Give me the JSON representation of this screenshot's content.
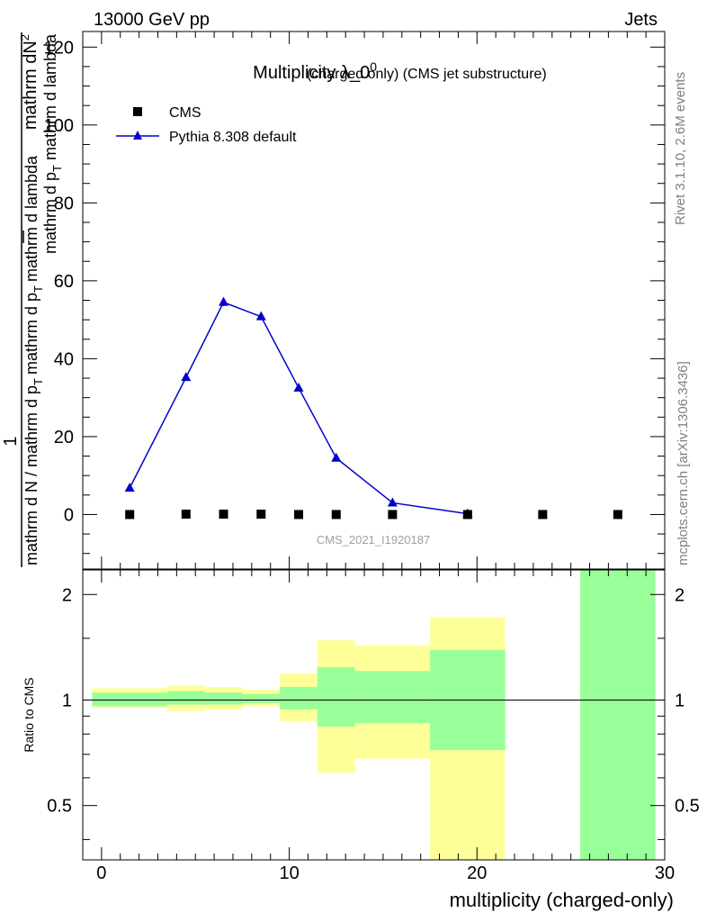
{
  "header": {
    "energy": "13000 GeV pp",
    "category": "Jets"
  },
  "side_text": {
    "rivet": "Rivet 3.1.10,  2.6M events",
    "mcplots": "mcplots.cern.ch [arXiv:1306.3436]"
  },
  "analysis_id": "CMS_2021_I1920187",
  "main_title": {
    "prefix": "Multiplicity λ_0",
    "superscript": "0",
    "suffix": "(charged only) (CMS jet substructure)"
  },
  "y_label": {
    "line1": "mathrm dN",
    "sup": "2",
    "line2a": "mathrm d p",
    "line2b": "T",
    "line2c": " mathrm d lambda",
    "one": "1",
    "den_a": "mathrm d N / mathrm d p",
    "den_b": "T",
    "den_c": "mathrm d p",
    "den_d": "T",
    "den_e": "mathrm d lambda"
  },
  "ratio_label": "Ratio to CMS",
  "x_label": "multiplicity (charged-only)",
  "colors": {
    "mc": "#0000cc",
    "data": "#000000",
    "band_inner": "#99ff99",
    "band_outer": "#ffff99"
  },
  "chart_data": [
    {
      "type": "scatter",
      "panel": "main",
      "title": "Multiplicity λ_0^0 (charged only) (CMS jet substructure)",
      "xlabel": "multiplicity (charged-only)",
      "xlim": [
        -1,
        30
      ],
      "ylim": [
        -14,
        124
      ],
      "yticks": [
        0,
        20,
        40,
        60,
        80,
        100,
        120
      ],
      "legend_position": "top-left",
      "series": [
        {
          "name": "CMS",
          "marker": "square",
          "x": [
            1.5,
            4.5,
            6.5,
            8.5,
            10.5,
            12.5,
            15.5,
            19.5,
            23.5,
            27.5
          ],
          "y": [
            0,
            0.1,
            0.1,
            0.1,
            0,
            0,
            0,
            0,
            0,
            0
          ]
        },
        {
          "name": "Pythia 8.308 default",
          "marker": "triangle",
          "line": true,
          "x": [
            1.5,
            4.5,
            6.5,
            8.5,
            10.5,
            12.5,
            15.5,
            19.5
          ],
          "y": [
            6.8,
            35.2,
            54.5,
            50.8,
            32.5,
            14.5,
            3.0,
            0.2
          ],
          "yerr": [
            0.5,
            0.8,
            1.0,
            0.9,
            0.7,
            0.5,
            0.2,
            0.05
          ]
        }
      ]
    },
    {
      "type": "area",
      "panel": "ratio",
      "ylabel": "Ratio to CMS",
      "xlim": [
        -1,
        30
      ],
      "ylim": [
        0.35,
        2.35
      ],
      "yticks": [
        0.5,
        1,
        2
      ],
      "reference_line": 1,
      "bins": [
        {
          "x_low": -0.5,
          "x_high": 3.5,
          "inner_low": 0.96,
          "inner_high": 1.05,
          "outer_low": 0.95,
          "outer_high": 1.08
        },
        {
          "x_low": 3.5,
          "x_high": 5.5,
          "inner_low": 0.97,
          "inner_high": 1.06,
          "outer_low": 0.93,
          "outer_high": 1.1
        },
        {
          "x_low": 5.5,
          "x_high": 7.5,
          "inner_low": 0.97,
          "inner_high": 1.05,
          "outer_low": 0.94,
          "outer_high": 1.09
        },
        {
          "x_low": 7.5,
          "x_high": 9.5,
          "inner_low": 0.98,
          "inner_high": 1.04,
          "outer_low": 0.96,
          "outer_high": 1.07
        },
        {
          "x_low": 9.5,
          "x_high": 11.5,
          "inner_low": 0.94,
          "inner_high": 1.09,
          "outer_low": 0.87,
          "outer_high": 1.19
        },
        {
          "x_low": 11.5,
          "x_high": 13.5,
          "inner_low": 0.84,
          "inner_high": 1.24,
          "outer_low": 0.62,
          "outer_high": 1.48
        },
        {
          "x_low": 13.5,
          "x_high": 17.5,
          "inner_low": 0.86,
          "inner_high": 1.21,
          "outer_low": 0.68,
          "outer_high": 1.43
        },
        {
          "x_low": 17.5,
          "x_high": 21.5,
          "inner_low": 0.72,
          "inner_high": 1.39,
          "outer_low": 0.35,
          "outer_high": 1.72
        },
        {
          "x_low": 25.5,
          "x_high": 29.5,
          "inner_low": 0.35,
          "inner_high": 2.35,
          "outer_low": 0.35,
          "outer_high": 2.35
        }
      ]
    }
  ],
  "x_ticks": [
    "0",
    "10",
    "20",
    "30"
  ]
}
